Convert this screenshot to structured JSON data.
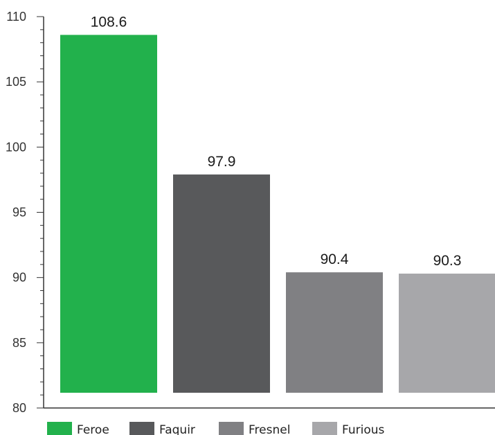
{
  "chart_data": {
    "type": "bar",
    "categories": [
      "Feroe",
      "Faquir",
      "Fresnel",
      "Furious"
    ],
    "values": [
      108.6,
      97.9,
      90.4,
      90.3
    ],
    "value_labels": [
      "108.6",
      "97.9",
      "90.4",
      "90.3"
    ],
    "colors": [
      "#22b14c",
      "#58595b",
      "#808083",
      "#a7a7aa"
    ],
    "title": "",
    "xlabel": "",
    "ylabel": "",
    "ylim": [
      80,
      110
    ],
    "yticks": [
      80,
      85,
      90,
      95,
      100,
      105,
      110
    ],
    "ytick_labels": [
      "80",
      "85",
      "90",
      "95",
      "100",
      "105",
      "110"
    ],
    "minor_tick_step": 1,
    "grid": false,
    "legend": {
      "position": "bottom",
      "entries": [
        "Feroe",
        "Faquir",
        "Fresnel",
        "Furious"
      ]
    }
  }
}
